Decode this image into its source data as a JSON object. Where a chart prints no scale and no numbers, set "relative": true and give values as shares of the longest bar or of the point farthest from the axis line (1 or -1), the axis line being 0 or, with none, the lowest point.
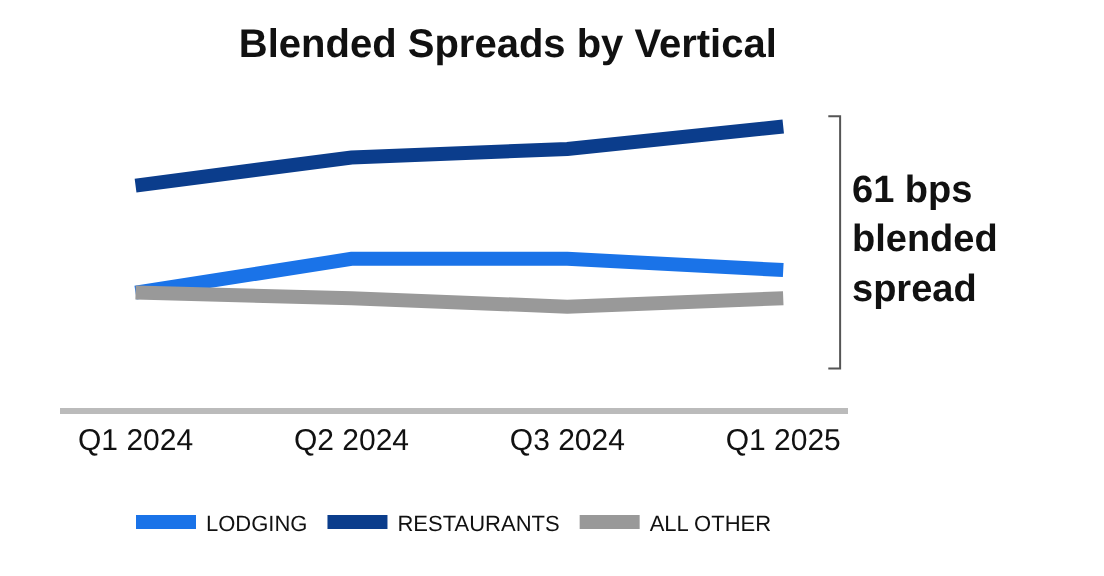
{
  "chart_data": {
    "type": "line",
    "title": "Blended Spreads by Vertical",
    "relative": true,
    "categories": [
      "Q1 2024",
      "Q2 2024",
      "Q3 2024",
      "Q1 2025"
    ],
    "series": [
      {
        "name": "LODGING",
        "color": "#1a73e8",
        "values": [
          0.41,
          0.53,
          0.53,
          0.49
        ]
      },
      {
        "name": "RESTAURANTS",
        "color": "#0b3d8c",
        "values": [
          0.79,
          0.89,
          0.92,
          1
        ]
      },
      {
        "name": "ALL OTHER",
        "color": "#999999",
        "values": [
          0.41,
          0.39,
          0.36,
          0.39
        ]
      }
    ],
    "annotations": [
      "61 bps blended spread"
    ],
    "legend": "bottom"
  }
}
